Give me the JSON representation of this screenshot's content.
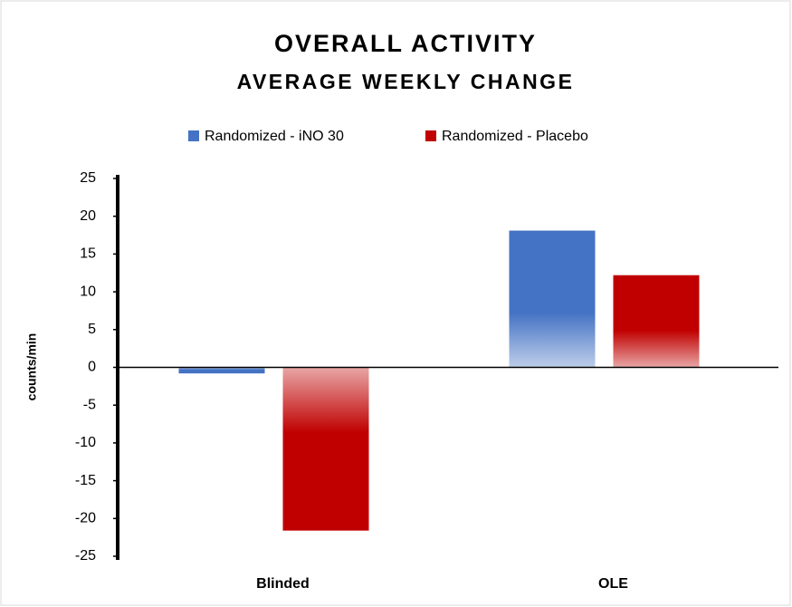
{
  "chart_data": {
    "type": "bar",
    "title": "OVERALL ACTIVITY",
    "subtitle": "AVERAGE WEEKLY CHANGE",
    "y_label": "counts/min",
    "categories": [
      "Blinded",
      "OLE"
    ],
    "series": [
      {
        "name": "Randomized - iNO 30",
        "color": "#4472c4",
        "values": [
          -0.8,
          18.1
        ]
      },
      {
        "name": "Randomized - Placebo",
        "color": "#c00000",
        "values": [
          -21.6,
          12.2
        ]
      }
    ],
    "ylim": [
      -25,
      25
    ],
    "yticks": [
      -25,
      -20,
      -15,
      -10,
      -5,
      0,
      5,
      10,
      15,
      20,
      25
    ],
    "grid": false,
    "legend": "top"
  }
}
